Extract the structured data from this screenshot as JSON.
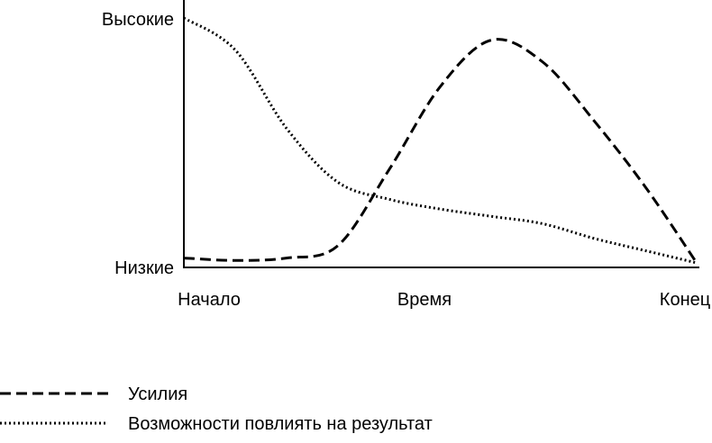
{
  "chart_data": {
    "type": "line",
    "x": [
      0,
      0.1,
      0.2,
      0.3,
      0.4,
      0.5,
      0.6,
      0.7,
      0.8,
      0.9,
      1.0
    ],
    "series": [
      {
        "name": "Усилия",
        "style": "dashed",
        "values": [
          0.02,
          0.01,
          0.02,
          0.07,
          0.38,
          0.72,
          0.91,
          0.82,
          0.58,
          0.31,
          0.0
        ]
      },
      {
        "name": "Возможности повлиять на результат",
        "style": "dotted",
        "values": [
          1.0,
          0.87,
          0.55,
          0.33,
          0.26,
          0.22,
          0.19,
          0.16,
          0.1,
          0.05,
          0.0
        ]
      }
    ],
    "xlabel": "Время",
    "x_tick_labels": [
      "Начало",
      "Конец"
    ],
    "y_tick_labels": [
      "Низкие",
      "Высокие"
    ],
    "ylim": [
      0,
      1
    ],
    "xlim": [
      0,
      1
    ],
    "grid": false,
    "legend": "bottom-left",
    "colors": {
      "line": "#000000",
      "background": "#ffffff"
    }
  }
}
